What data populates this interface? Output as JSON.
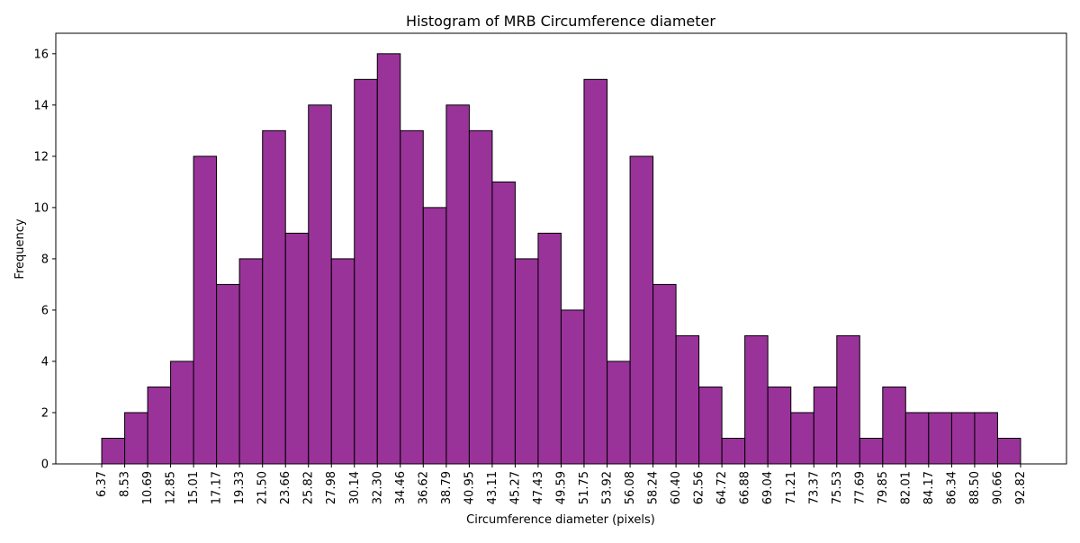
{
  "chart_data": {
    "type": "bar",
    "title": "Histogram of MRB Circumference diameter",
    "xlabel": "Circumference diameter (pixels)",
    "ylabel": "Frequency",
    "bin_edges": [
      "6.37",
      "8.53",
      "10.69",
      "12.85",
      "15.01",
      "17.17",
      "19.33",
      "21.50",
      "23.66",
      "25.82",
      "27.98",
      "30.14",
      "32.30",
      "34.46",
      "36.62",
      "38.79",
      "40.95",
      "43.11",
      "45.27",
      "47.43",
      "49.59",
      "51.75",
      "53.92",
      "56.08",
      "58.24",
      "60.40",
      "62.56",
      "64.72",
      "66.88",
      "69.04",
      "71.21",
      "73.37",
      "75.53",
      "77.69",
      "79.85",
      "82.01",
      "84.17",
      "86.34",
      "88.50",
      "90.66",
      "92.82"
    ],
    "values": [
      1,
      2,
      3,
      4,
      12,
      7,
      8,
      13,
      9,
      14,
      8,
      15,
      16,
      13,
      10,
      14,
      13,
      11,
      8,
      9,
      6,
      15,
      4,
      12,
      7,
      5,
      3,
      1,
      5,
      3,
      2,
      3,
      5,
      1,
      3,
      2,
      2,
      2,
      2,
      1
    ],
    "yticks": [
      0,
      2,
      4,
      6,
      8,
      10,
      12,
      14,
      16
    ],
    "ylim": [
      0,
      16.8
    ],
    "bar_color": "#800080",
    "bar_edge_color": "#000000",
    "grid": false
  }
}
